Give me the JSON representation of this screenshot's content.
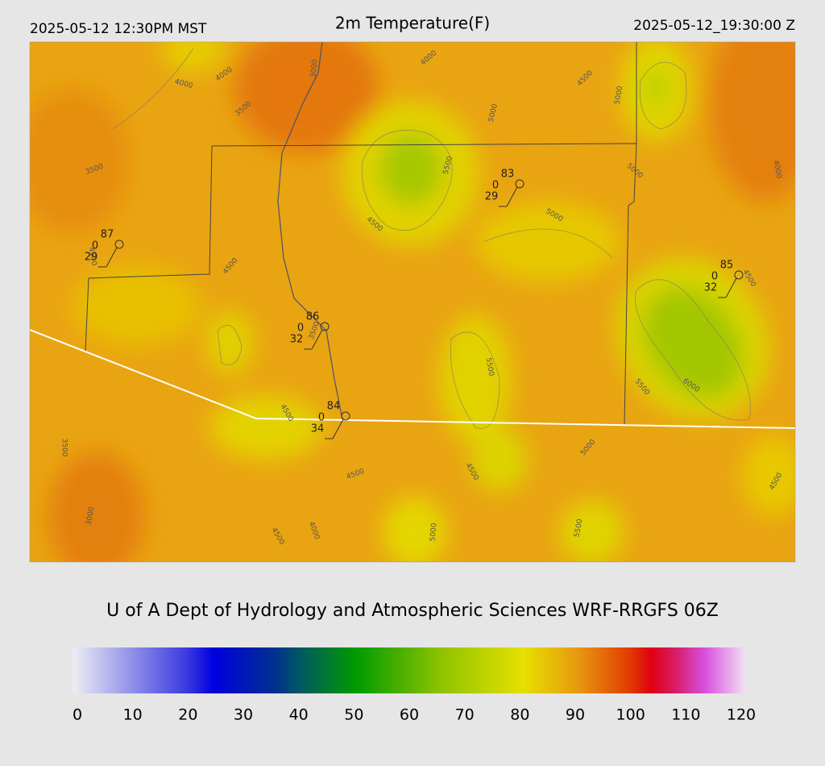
{
  "header": {
    "left": "2025-05-12 12:30PM MST",
    "title": "2m Temperature(F)",
    "right": "2025-05-12_19:30:00 Z"
  },
  "map": {
    "contour_labels": [
      4000,
      4000,
      3500,
      3000,
      4000,
      4500,
      5000,
      5000,
      5500,
      4500,
      5000,
      5000,
      4000,
      3500,
      4500,
      4500,
      3500,
      4500,
      5500,
      5500,
      6000,
      4500,
      5000,
      4500,
      4500,
      3500,
      3000,
      4000,
      4500,
      5000,
      5500,
      4500
    ],
    "stations": [
      {
        "top": 87,
        "mid": 0,
        "low": 29
      },
      {
        "top": 83,
        "mid": 0,
        "low": 29
      },
      {
        "top": 85,
        "mid": 0,
        "low": 32
      },
      {
        "top": 86,
        "mid": 0,
        "low": 32
      },
      {
        "top": 84,
        "mid": 0,
        "low": 34
      }
    ]
  },
  "footer": {
    "credit": "U of A Dept of Hydrology and Atmospheric Sciences WRF-RRGFS 06Z"
  },
  "colorbar": {
    "range": [
      0,
      120
    ],
    "ticks": [
      0,
      10,
      20,
      30,
      40,
      50,
      60,
      70,
      80,
      90,
      100,
      110,
      120
    ]
  }
}
